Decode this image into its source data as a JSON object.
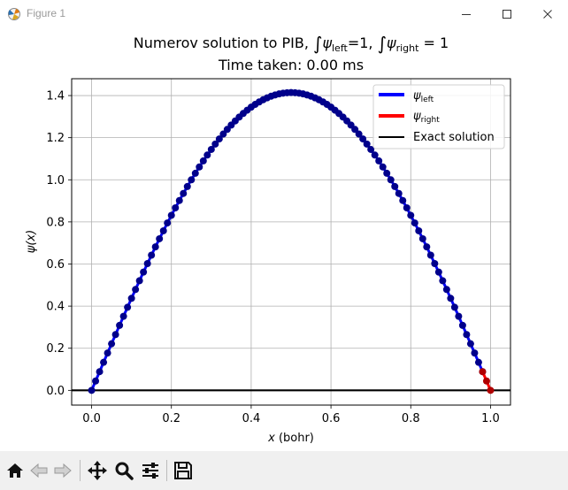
{
  "window": {
    "title": "Figure 1",
    "icon": "matplotlib-logo-icon",
    "controls": [
      "minimize-icon",
      "maximize-icon",
      "close-icon"
    ]
  },
  "figure": {
    "title_line2": "Time taken: 0.00 ms"
  },
  "chart_data": {
    "type": "line",
    "title_parts": {
      "prefix": "Numerov solution to PIB, ",
      "psi": "ψ",
      "left_sub": "left",
      "right_sub": "right",
      "eq_one_tight": "=1, ",
      "eq_one_spaced": " = 1"
    },
    "title_line2": "Time taken: 0.00 ms",
    "xlabel_var": "x",
    "xlabel_unit": " (bohr)",
    "ylabel": "ψ(x)",
    "xlim": [
      -0.05,
      1.05
    ],
    "ylim": [
      -0.07,
      1.48
    ],
    "xticks": [
      0.0,
      0.2,
      0.4,
      0.6,
      0.8,
      1.0
    ],
    "xtick_labels": [
      "0.0",
      "0.2",
      "0.4",
      "0.6",
      "0.8",
      "1.0"
    ],
    "yticks": [
      0.0,
      0.2,
      0.4,
      0.6,
      0.8,
      1.0,
      1.2,
      1.4
    ],
    "ytick_labels": [
      "0.0",
      "0.2",
      "0.4",
      "0.6",
      "0.8",
      "1.0",
      "1.2",
      "1.4"
    ],
    "grid": true,
    "legend_position": "top-right",
    "legend": [
      {
        "label_base": "ψ",
        "label_sub": "left",
        "color": "#0000ff"
      },
      {
        "label_base": "ψ",
        "label_sub": "right",
        "color": "#ff0000"
      },
      {
        "label_base": "Exact solution",
        "label_sub": "",
        "color": "#000000"
      }
    ],
    "series": [
      {
        "name": "ψleft",
        "color": "#0000ff",
        "marker_color": "#00008b",
        "amplitude": 1.4142,
        "x_from": 0.0,
        "x_to": 0.98,
        "step": 0.01
      },
      {
        "name": "ψright",
        "color": "#ff0000",
        "marker_color": "#b00000",
        "amplitude": 1.4142,
        "x_from": 0.98,
        "x_to": 1.0,
        "step": 0.01
      },
      {
        "name": "Exact solution",
        "color": "#000000",
        "y": 0.0,
        "x_from": -0.05,
        "x_to": 1.05
      }
    ]
  },
  "toolbar": {
    "buttons": [
      {
        "name": "home-button",
        "icon": "home-icon"
      },
      {
        "name": "back-button",
        "icon": "back-arrow-icon"
      },
      {
        "name": "forward-button",
        "icon": "forward-arrow-icon"
      },
      {
        "name": "pan-button",
        "icon": "move-icon"
      },
      {
        "name": "zoom-button",
        "icon": "magnifier-icon"
      },
      {
        "name": "subplots-button",
        "icon": "sliders-icon"
      },
      {
        "name": "save-button",
        "icon": "floppy-disk-icon"
      }
    ]
  }
}
